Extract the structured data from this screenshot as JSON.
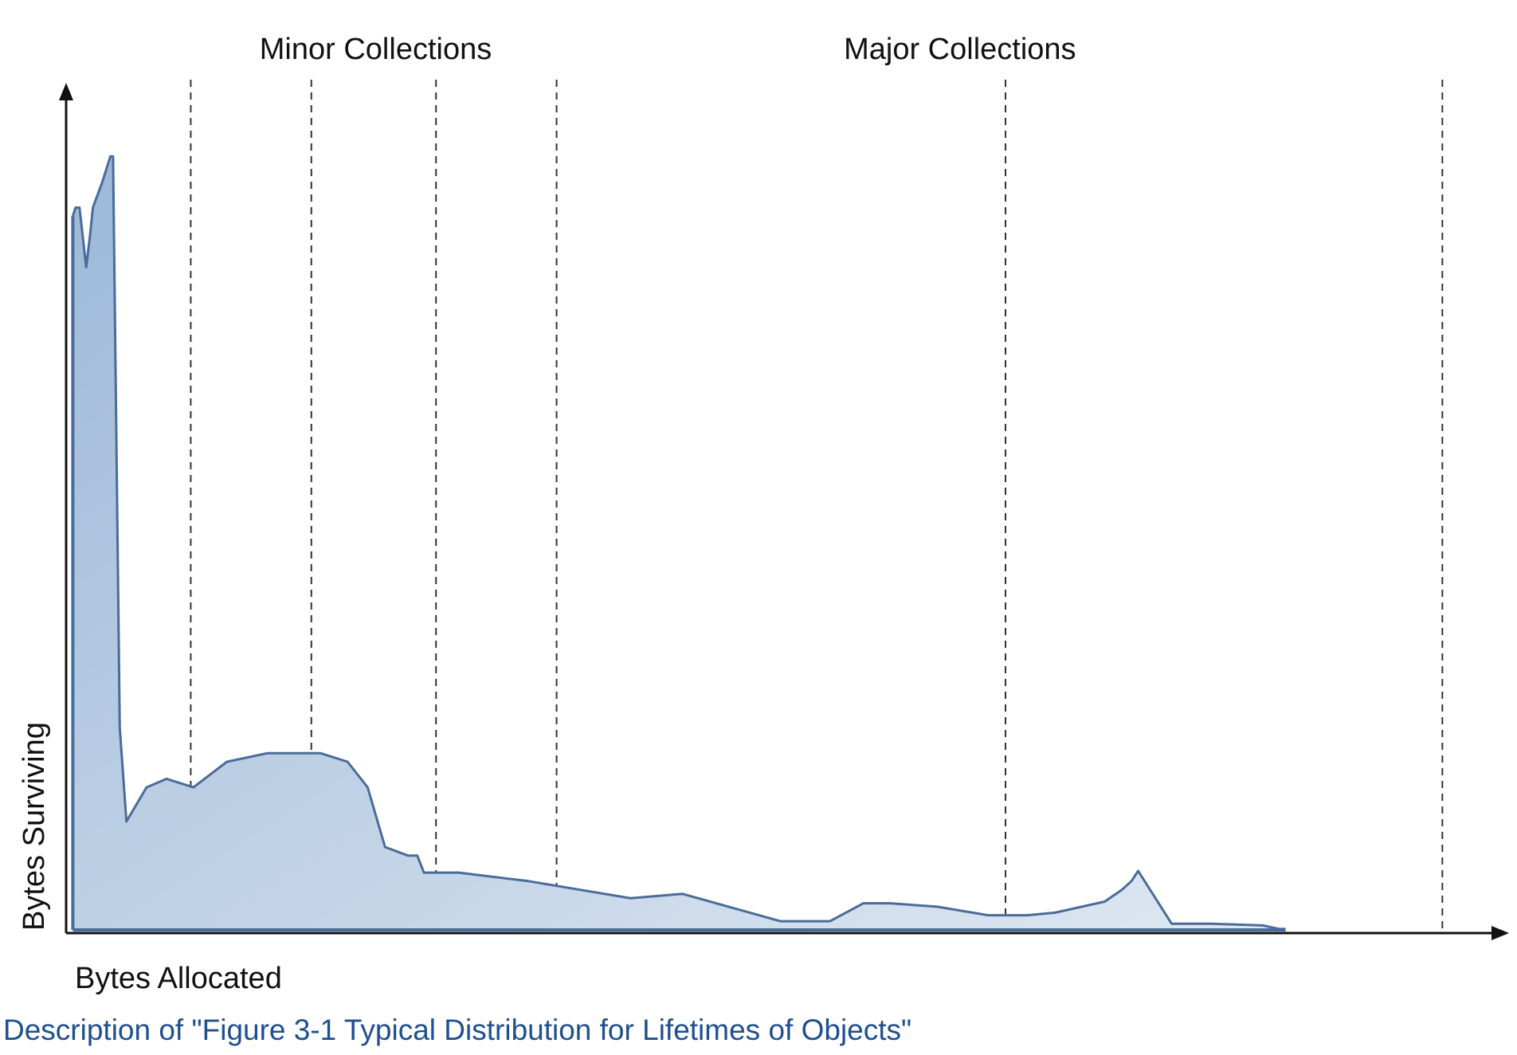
{
  "chart_data": {
    "type": "area",
    "xlabel": "Bytes Allocated",
    "ylabel": "Bytes Surviving",
    "region_labels": [
      {
        "text": "Minor Collections",
        "x_center": 0.231
      },
      {
        "text": "Major Collections",
        "x_center": 0.667
      }
    ],
    "collection_markers_x": [
      0.093,
      0.183,
      0.276,
      0.366,
      0.701,
      1.027
    ],
    "xlim": [
      0,
      1.05
    ],
    "ylim": [
      0,
      1.0
    ],
    "grid": false,
    "legend": "none",
    "series": [
      {
        "x": [
          0.005,
          0.007,
          0.01,
          0.015,
          0.018,
          0.02,
          0.027,
          0.033,
          0.035,
          0.04,
          0.045,
          0.06,
          0.075,
          0.095,
          0.12,
          0.15,
          0.19,
          0.21,
          0.225,
          0.238,
          0.255,
          0.262,
          0.267,
          0.274,
          0.283,
          0.293,
          0.345,
          0.421,
          0.46,
          0.533,
          0.57,
          0.595,
          0.615,
          0.65,
          0.688,
          0.717,
          0.738,
          0.775,
          0.788,
          0.795,
          0.8,
          0.825,
          0.855,
          0.893,
          0.905,
          0.91
        ],
        "y": [
          0.84,
          0.85,
          0.85,
          0.78,
          0.82,
          0.85,
          0.88,
          0.91,
          0.91,
          0.24,
          0.13,
          0.17,
          0.18,
          0.17,
          0.2,
          0.21,
          0.21,
          0.2,
          0.17,
          0.1,
          0.09,
          0.09,
          0.07,
          0.07,
          0.07,
          0.07,
          0.06,
          0.04,
          0.045,
          0.013,
          0.013,
          0.034,
          0.034,
          0.03,
          0.02,
          0.02,
          0.023,
          0.036,
          0.05,
          0.06,
          0.072,
          0.01,
          0.01,
          0.008,
          0.004,
          0.004
        ]
      }
    ],
    "colors": {
      "fill_light": "#dfe8f2",
      "fill_dark": "#9cb8d9",
      "stroke": "#4a6c98",
      "axis": "#111111",
      "marker": "#333333",
      "caption": "#1f4f8f"
    }
  },
  "caption": "Description of \"Figure 3-1 Typical Distribution for Lifetimes of Objects\""
}
